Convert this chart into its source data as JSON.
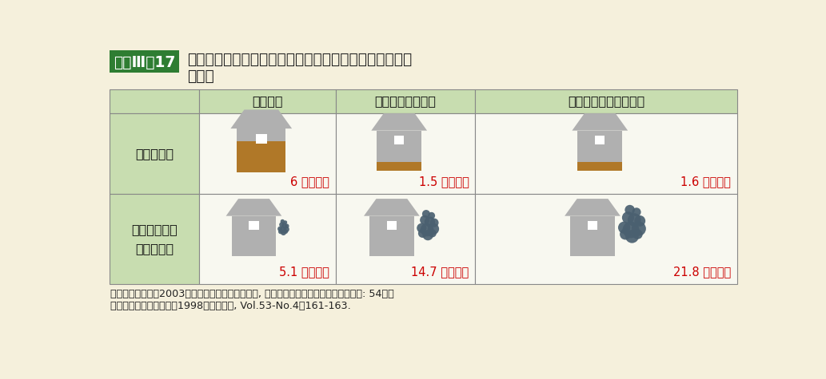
{
  "bg_color": "#f5f0dc",
  "title_label": "資料Ⅲ－17",
  "title_label_bg": "#2e7d32",
  "title_label_color": "#ffffff",
  "title_text_line1": "住宅一戸当たりの炭素豏蔵量と材料製造時の二酸化炭素",
  "title_text_line2": "排出量",
  "title_color": "#222222",
  "header_bg": "#c8ddb0",
  "row_label_bg": "#c8ddb0",
  "cell_bg": "#f8f8f0",
  "header_border": "#888888",
  "col_headers": [
    "木造住宅",
    "鉄骨プレハブ住宅",
    "鉄筋コンクリート住宅"
  ],
  "row_headers": [
    "炭素豏蔵量",
    "材料製造時の\n炭素放出量"
  ],
  "values_row1": [
    "6 炭素トン",
    "1.5 炭素トン",
    "1.6 炭素トン"
  ],
  "values_row2": [
    "5.1 炭素トン",
    "14.7 炭素トン",
    "21.8 炭素トン"
  ],
  "value_color": "#cc0000",
  "house_gray": "#b0b0b0",
  "house_brown": "#b07828",
  "smoke_color": "#4a6070",
  "footnote_line1": "資料：大熊幹章（2003）地球環境保全と木材利用, 一般社団法人全国林業改良普及協会: 54、岡",
  "footnote_line2": "　　崎泰男、大熊幹章（1998）木材工業, Vol.53-No.4：161-163.",
  "footnote_color": "#222222"
}
